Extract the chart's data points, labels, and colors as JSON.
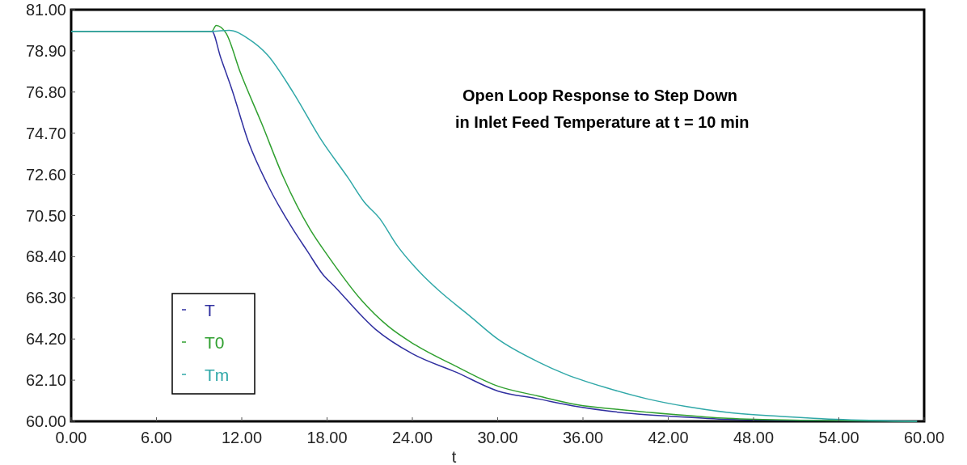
{
  "chart_data": {
    "type": "line",
    "title": "Open Loop Response to Step Down\n in Inlet Feed Temperature at t = 10 min",
    "xlabel": "t",
    "xlim": [
      0,
      60
    ],
    "ylim": [
      60,
      81
    ],
    "xticks": [
      {
        "value": 0,
        "label": "0.00"
      },
      {
        "value": 6,
        "label": "6.00"
      },
      {
        "value": 12,
        "label": "12.00"
      },
      {
        "value": 18,
        "label": "18.00"
      },
      {
        "value": 24,
        "label": "24.00"
      },
      {
        "value": 30,
        "label": "30.00"
      },
      {
        "value": 36,
        "label": "36.00"
      },
      {
        "value": 42,
        "label": "42.00"
      },
      {
        "value": 48,
        "label": "48.00"
      },
      {
        "value": 54,
        "label": "54.00"
      },
      {
        "value": 60,
        "label": "60.00"
      }
    ],
    "yticks": [
      {
        "value": 60,
        "label": "60.00"
      },
      {
        "value": 62.1,
        "label": "62.10"
      },
      {
        "value": 64.2,
        "label": "64.20"
      },
      {
        "value": 66.3,
        "label": "66.30"
      },
      {
        "value": 68.4,
        "label": "68.40"
      },
      {
        "value": 70.5,
        "label": "70.50"
      },
      {
        "value": 72.6,
        "label": "72.60"
      },
      {
        "value": 74.7,
        "label": "74.70"
      },
      {
        "value": 76.8,
        "label": "76.80"
      },
      {
        "value": 78.9,
        "label": "78.90"
      },
      {
        "value": 81,
        "label": "81.00"
      }
    ],
    "grid": false,
    "legend": "bottom left",
    "marker": "none",
    "line_style": "solid",
    "series": [
      {
        "name": "T",
        "color": "#3030a0",
        "x": [
          0,
          9.9,
          10.5,
          11.3,
          12.5,
          13.8,
          15.6,
          16.6,
          17.7,
          18.5,
          21.4,
          24,
          27.1,
          30,
          32.8,
          35.6,
          39.4,
          42.4,
          46.2,
          52,
          59.5
        ],
        "values": [
          79.9,
          79.9,
          78.6,
          76.95,
          74.2,
          72.1,
          69.8,
          68.7,
          67.5,
          66.9,
          64.7,
          63.45,
          62.5,
          61.55,
          61.15,
          60.75,
          60.4,
          60.25,
          60.1,
          60.03,
          60
        ]
      },
      {
        "name": "T0",
        "color": "#30a030",
        "x": [
          0,
          9.9,
          10.2,
          10.9,
          11.9,
          13.4,
          14.9,
          16.8,
          18.2,
          20.4,
          22.3,
          24.2,
          27.1,
          30,
          32.8,
          35.6,
          38.6,
          42.4,
          46.2,
          51.3,
          59.5
        ],
        "values": [
          79.9,
          79.9,
          80.2,
          79.8,
          77.8,
          75.2,
          72.5,
          69.8,
          68.3,
          66.2,
          64.85,
          63.9,
          62.8,
          61.8,
          61.3,
          60.85,
          60.6,
          60.35,
          60.15,
          60.05,
          60
        ]
      },
      {
        "name": "Tm",
        "color": "#30a8a8",
        "x": [
          0,
          10,
          11.1,
          12.5,
          13.8,
          15.6,
          17.6,
          19.5,
          20.6,
          21.7,
          22.9,
          24.6,
          25.9,
          28,
          30,
          32.8,
          34.8,
          37.7,
          40.5,
          43.3,
          46.2,
          50,
          53.8,
          59.5
        ],
        "values": [
          79.9,
          79.9,
          79.95,
          79.5,
          78.7,
          76.8,
          74.35,
          72.4,
          71.2,
          70.35,
          69,
          67.55,
          66.65,
          65.4,
          64.2,
          63.05,
          62.4,
          61.7,
          61.15,
          60.75,
          60.45,
          60.25,
          60.1,
          60
        ]
      }
    ]
  }
}
